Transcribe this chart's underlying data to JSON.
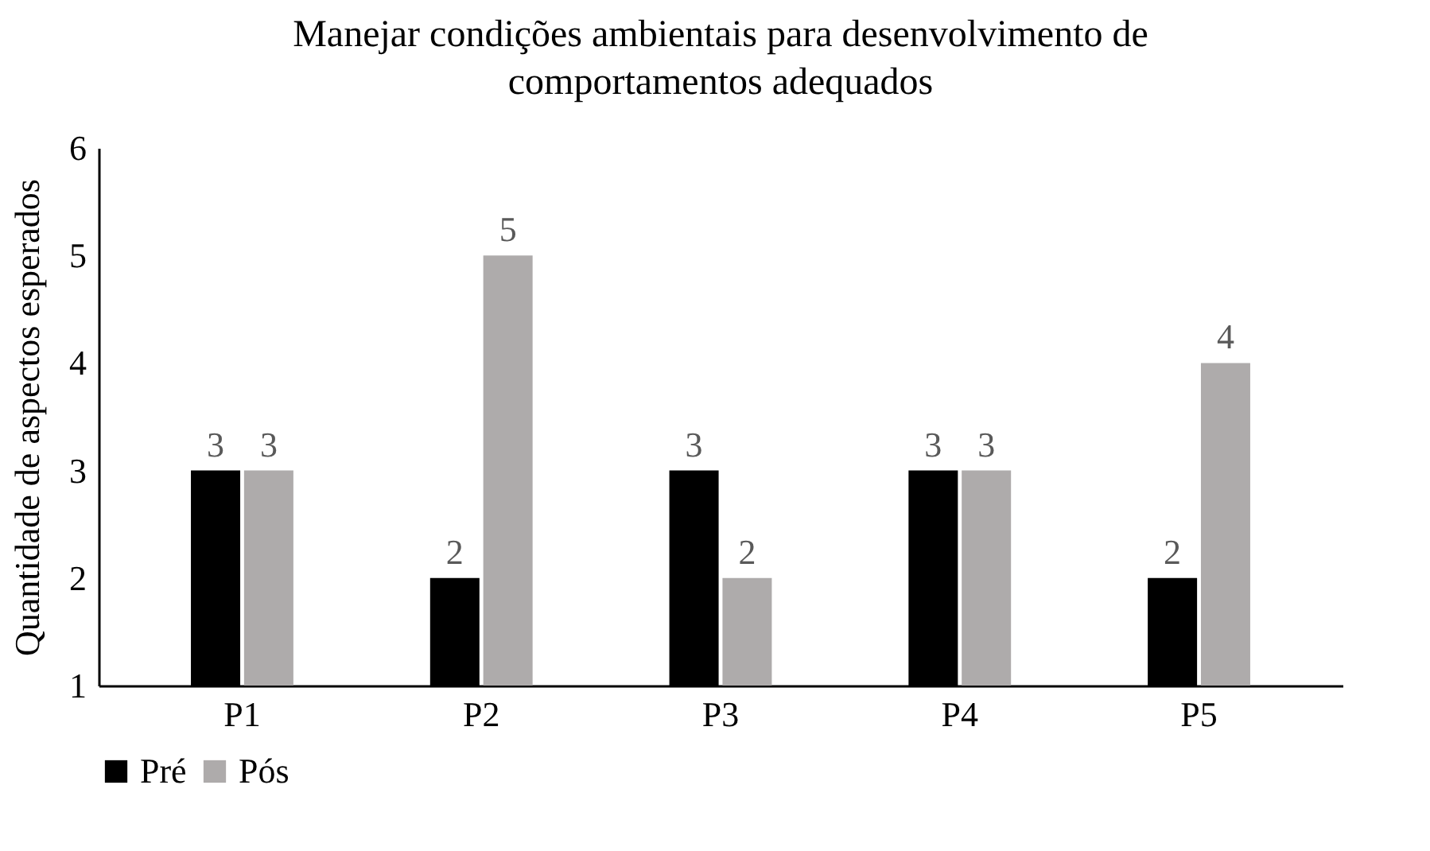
{
  "chart_data": {
    "type": "bar",
    "title": "Manejar condições ambientais para desenvolvimento de comportamentos adequados",
    "ylabel": "Quantidade de aspectos esperados",
    "categories": [
      "P1",
      "P2",
      "P3",
      "P4",
      "P5"
    ],
    "series": [
      {
        "name": "Pré",
        "color": "#000000",
        "values": [
          3,
          2,
          3,
          3,
          2
        ]
      },
      {
        "name": "Pós",
        "color": "#aeabab",
        "values": [
          3,
          5,
          2,
          3,
          4
        ]
      }
    ],
    "ylim": [
      1,
      6
    ],
    "yticks": [
      1,
      2,
      3,
      4,
      5,
      6
    ],
    "grid": false,
    "legend": "bottom",
    "data_labels": true
  }
}
